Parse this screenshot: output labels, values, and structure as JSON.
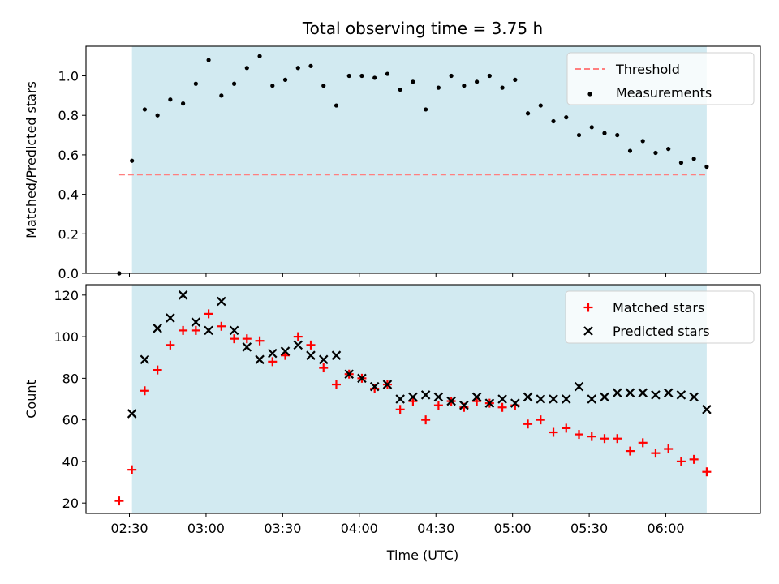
{
  "title": "Total observing time = 3.75 h",
  "colors": {
    "shade": "#add8e6",
    "threshold": "#ff7f7f",
    "measurements": "#000000",
    "matched": "#ff0000",
    "predicted": "#000000"
  },
  "chart_data": [
    {
      "type": "scatter",
      "ylabel": "Matched/Predicted stars",
      "ylim": [
        0,
        1.15
      ],
      "yticks": [
        0.0,
        0.2,
        0.4,
        0.6,
        0.8,
        1.0
      ],
      "ytick_labels": [
        "0.0",
        "0.2",
        "0.4",
        "0.6",
        "0.8",
        "1.0"
      ],
      "xlim": [
        "02:13",
        "06:37"
      ],
      "observing_window": [
        "02:31",
        "06:16"
      ],
      "legend": {
        "placement": "upper right",
        "entries": [
          "Threshold",
          "Measurements"
        ]
      },
      "threshold": {
        "name": "Threshold",
        "value": 0.5,
        "style": "dashed"
      },
      "series": [
        {
          "name": "Measurements",
          "x": [
            "02:26",
            "02:31",
            "02:36",
            "02:41",
            "02:46",
            "02:51",
            "02:56",
            "03:01",
            "03:06",
            "03:11",
            "03:16",
            "03:21",
            "03:26",
            "03:31",
            "03:36",
            "03:41",
            "03:46",
            "03:51",
            "03:56",
            "04:01",
            "04:06",
            "04:11",
            "04:16",
            "04:21",
            "04:26",
            "04:31",
            "04:36",
            "04:41",
            "04:46",
            "04:51",
            "04:56",
            "05:01",
            "05:06",
            "05:11",
            "05:16",
            "05:21",
            "05:26",
            "05:31",
            "05:36",
            "05:41",
            "05:46",
            "05:51",
            "05:56",
            "06:01",
            "06:06",
            "06:11",
            "06:16"
          ],
          "y": [
            0.0,
            0.57,
            0.83,
            0.8,
            0.88,
            0.86,
            0.96,
            1.08,
            0.9,
            0.96,
            1.04,
            1.1,
            0.95,
            0.98,
            1.04,
            1.05,
            0.95,
            0.85,
            1.0,
            1.0,
            0.99,
            1.01,
            0.93,
            0.97,
            0.83,
            0.94,
            1.0,
            0.95,
            0.97,
            1.0,
            0.94,
            0.98,
            0.81,
            0.85,
            0.77,
            0.79,
            0.7,
            0.74,
            0.71,
            0.7,
            0.62,
            0.67,
            0.61,
            0.63,
            0.56,
            0.58,
            0.54
          ]
        }
      ]
    },
    {
      "type": "scatter",
      "xlabel": "Time (UTC)",
      "ylabel": "Count",
      "ylim": [
        15,
        125
      ],
      "yticks": [
        20,
        40,
        60,
        80,
        100,
        120
      ],
      "ytick_labels": [
        "20",
        "40",
        "60",
        "80",
        "100",
        "120"
      ],
      "xlim": [
        "02:13",
        "06:37"
      ],
      "xticks": [
        "02:30",
        "03:00",
        "03:30",
        "04:00",
        "04:30",
        "05:00",
        "05:30",
        "06:00"
      ],
      "observing_window": [
        "02:31",
        "06:16"
      ],
      "legend": {
        "placement": "upper right",
        "entries": [
          "Matched stars",
          "Predicted stars"
        ]
      },
      "series": [
        {
          "name": "Matched stars",
          "marker": "+",
          "x": [
            "02:26",
            "02:31",
            "02:36",
            "02:41",
            "02:46",
            "02:51",
            "02:56",
            "03:01",
            "03:06",
            "03:11",
            "03:16",
            "03:21",
            "03:26",
            "03:31",
            "03:36",
            "03:41",
            "03:46",
            "03:51",
            "03:56",
            "04:01",
            "04:06",
            "04:11",
            "04:16",
            "04:21",
            "04:26",
            "04:31",
            "04:36",
            "04:41",
            "04:46",
            "04:51",
            "04:56",
            "05:01",
            "05:06",
            "05:11",
            "05:16",
            "05:21",
            "05:26",
            "05:31",
            "05:36",
            "05:41",
            "05:46",
            "05:51",
            "05:56",
            "06:01",
            "06:06",
            "06:11",
            "06:16"
          ],
          "y": [
            21,
            36,
            74,
            84,
            96,
            103,
            103,
            111,
            105,
            99,
            99,
            98,
            88,
            91,
            100,
            96,
            85,
            77,
            82,
            80,
            75,
            77,
            65,
            69,
            60,
            67,
            69,
            66,
            69,
            68,
            66,
            67,
            58,
            60,
            54,
            56,
            53,
            52,
            51,
            51,
            45,
            49,
            44,
            46,
            40,
            41,
            35
          ]
        },
        {
          "name": "Predicted stars",
          "marker": "x",
          "x": [
            "02:31",
            "02:36",
            "02:41",
            "02:46",
            "02:51",
            "02:56",
            "03:01",
            "03:06",
            "03:11",
            "03:16",
            "03:21",
            "03:26",
            "03:31",
            "03:36",
            "03:41",
            "03:46",
            "03:51",
            "03:56",
            "04:01",
            "04:06",
            "04:11",
            "04:16",
            "04:21",
            "04:26",
            "04:31",
            "04:36",
            "04:41",
            "04:46",
            "04:51",
            "04:56",
            "05:01",
            "05:06",
            "05:11",
            "05:16",
            "05:21",
            "05:26",
            "05:31",
            "05:36",
            "05:41",
            "05:46",
            "05:51",
            "05:56",
            "06:01",
            "06:06",
            "06:11",
            "06:16"
          ],
          "y": [
            63,
            89,
            104,
            109,
            120,
            107,
            103,
            117,
            103,
            95,
            89,
            92,
            93,
            96,
            91,
            89,
            91,
            82,
            80,
            76,
            77,
            70,
            71,
            72,
            71,
            69,
            67,
            71,
            68,
            70,
            68,
            71,
            70,
            70,
            70,
            76,
            70,
            71,
            73,
            73,
            73,
            72,
            73,
            72,
            71,
            65
          ]
        }
      ]
    }
  ]
}
